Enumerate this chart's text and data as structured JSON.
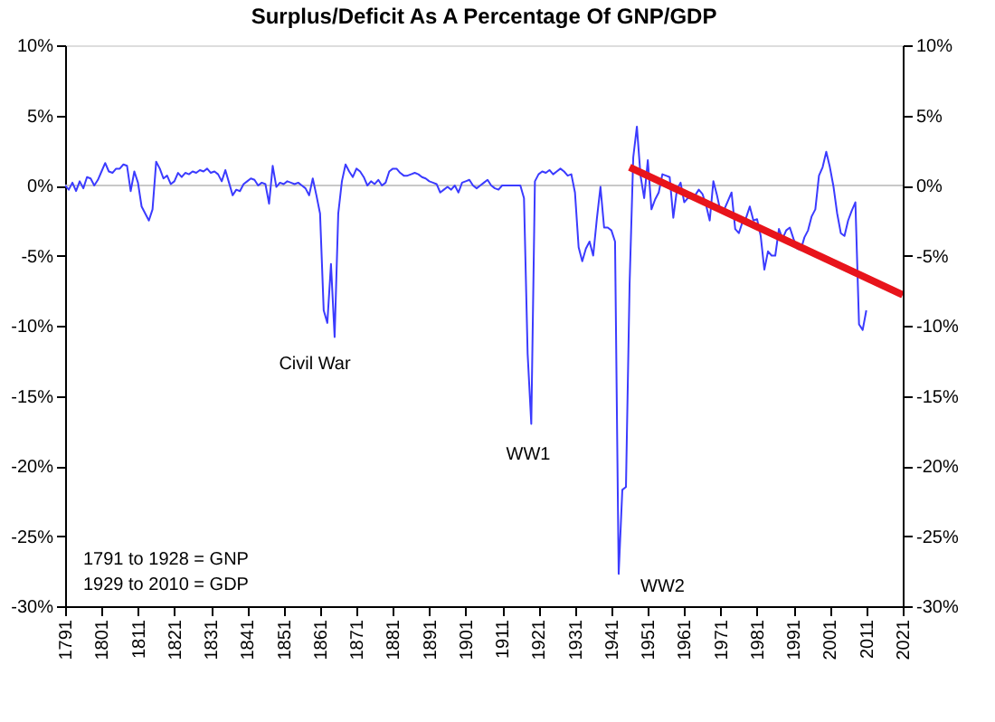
{
  "chart_data": {
    "type": "line",
    "title": "Surplus/Deficit As A Percentage Of GNP/GDP",
    "x": [
      1791,
      1792,
      1793,
      1794,
      1795,
      1796,
      1797,
      1798,
      1799,
      1800,
      1801,
      1802,
      1803,
      1804,
      1805,
      1806,
      1807,
      1808,
      1809,
      1810,
      1811,
      1812,
      1813,
      1814,
      1815,
      1816,
      1817,
      1818,
      1819,
      1820,
      1821,
      1822,
      1823,
      1824,
      1825,
      1826,
      1827,
      1828,
      1829,
      1830,
      1831,
      1832,
      1833,
      1834,
      1835,
      1836,
      1837,
      1838,
      1839,
      1840,
      1841,
      1842,
      1843,
      1844,
      1845,
      1846,
      1847,
      1848,
      1849,
      1850,
      1851,
      1852,
      1853,
      1854,
      1855,
      1856,
      1857,
      1858,
      1859,
      1860,
      1861,
      1862,
      1863,
      1864,
      1865,
      1866,
      1867,
      1868,
      1869,
      1870,
      1871,
      1872,
      1873,
      1874,
      1875,
      1876,
      1877,
      1878,
      1879,
      1880,
      1881,
      1882,
      1883,
      1884,
      1885,
      1886,
      1887,
      1888,
      1889,
      1890,
      1891,
      1892,
      1893,
      1894,
      1895,
      1896,
      1897,
      1898,
      1899,
      1900,
      1901,
      1902,
      1903,
      1904,
      1905,
      1906,
      1907,
      1908,
      1909,
      1910,
      1911,
      1912,
      1913,
      1914,
      1915,
      1916,
      1917,
      1918,
      1919,
      1920,
      1921,
      1922,
      1923,
      1924,
      1925,
      1926,
      1927,
      1928,
      1929,
      1930,
      1931,
      1932,
      1933,
      1934,
      1935,
      1936,
      1937,
      1938,
      1939,
      1940,
      1941,
      1942,
      1943,
      1944,
      1945,
      1946,
      1947,
      1948,
      1949,
      1950,
      1951,
      1952,
      1953,
      1954,
      1955,
      1956,
      1957,
      1958,
      1959,
      1960,
      1961,
      1962,
      1963,
      1964,
      1965,
      1966,
      1967,
      1968,
      1969,
      1970,
      1971,
      1972,
      1973,
      1974,
      1975,
      1976,
      1977,
      1978,
      1979,
      1980,
      1981,
      1982,
      1983,
      1984,
      1985,
      1986,
      1987,
      1988,
      1989,
      1990,
      1991,
      1992,
      1993,
      1994,
      1995,
      1996,
      1997,
      1998,
      1999,
      2000,
      2001,
      2002,
      2003,
      2004,
      2005,
      2006,
      2007,
      2008,
      2009,
      2010,
      2011
    ],
    "series": [
      {
        "color": "#3b3bff",
        "values": [
          0,
          -0.3,
          0.2,
          -0.4,
          0.3,
          -0.2,
          0.6,
          0.5,
          0,
          0.4,
          1.0,
          1.6,
          1.0,
          0.9,
          1.2,
          1.2,
          1.5,
          1.4,
          -0.4,
          1.0,
          0.2,
          -1.5,
          -2.0,
          -2.5,
          -1.7,
          1.7,
          1.2,
          0.5,
          0.7,
          0.1,
          0.3,
          0.9,
          0.6,
          0.9,
          0.8,
          1.0,
          0.9,
          1.1,
          1.0,
          1.2,
          0.9,
          1.0,
          0.8,
          0.3,
          1.1,
          0.2,
          -0.7,
          -0.3,
          -0.4,
          0.1,
          0.3,
          0.5,
          0.4,
          0,
          0.2,
          0.1,
          -1.3,
          1.4,
          -0.1,
          0.2,
          0.1,
          0.3,
          0.2,
          0.1,
          0.2,
          0,
          -0.2,
          -0.7,
          0.5,
          -0.7,
          -2.0,
          -8.9,
          -9.8,
          -5.6,
          -10.8,
          -2.0,
          0.3,
          1.5,
          1.0,
          0.6,
          1.2,
          1.0,
          0.6,
          0,
          0.3,
          0.1,
          0.4,
          0,
          0.2,
          1.0,
          1.2,
          1.2,
          0.9,
          0.7,
          0.7,
          0.8,
          0.9,
          0.8,
          0.6,
          0.5,
          0.3,
          0.2,
          0.1,
          -0.5,
          -0.3,
          -0.1,
          -0.3,
          0,
          -0.5,
          0.2,
          0.3,
          0.4,
          0,
          -0.2,
          0,
          0.2,
          0.4,
          0,
          -0.2,
          -0.3,
          0,
          0,
          0,
          0,
          0,
          0,
          -0.9,
          -12.0,
          -17.0,
          0.3,
          0.8,
          1.0,
          0.9,
          1.1,
          0.8,
          1.0,
          1.2,
          1.0,
          0.7,
          0.8,
          -0.5,
          -4.4,
          -5.4,
          -4.5,
          -4.0,
          -5.0,
          -2.4,
          -0.1,
          -3.0,
          -3.0,
          -3.2,
          -4.0,
          -27.7,
          -21.7,
          -21.5,
          -7.0,
          2.0,
          4.2,
          0.7,
          -0.9,
          1.8,
          -1.7,
          -1.0,
          -0.5,
          0.8,
          0.7,
          0.6,
          -2.3,
          -0.3,
          0.2,
          -1.2,
          -0.9,
          -0.8,
          -0.7,
          -0.3,
          -0.6,
          -1.4,
          -2.5,
          0.3,
          -0.7,
          -1.9,
          -1.7,
          -1.1,
          -0.5,
          -3.1,
          -3.4,
          -2.6,
          -2.3,
          -1.5,
          -2.5,
          -2.4,
          -3.6,
          -6.0,
          -4.7,
          -5.0,
          -5.0,
          -3.1,
          -3.8,
          -3.2,
          -3.0,
          -3.8,
          -4.5,
          -4.6,
          -3.7,
          -3.2,
          -2.2,
          -1.7,
          0.7,
          1.3,
          2.4,
          1.3,
          -0.1,
          -2.0,
          -3.4,
          -3.6,
          -2.5,
          -1.8,
          -1.2,
          -9.9,
          -10.3,
          -8.9
        ]
      },
      {
        "type": "line",
        "color": "#e8141b",
        "x": [
          1946,
          2021
        ],
        "values": [
          1.3,
          -7.8
        ]
      }
    ],
    "xlim": [
      1791,
      2021
    ],
    "xticks": [
      1791,
      1801,
      1811,
      1821,
      1831,
      1841,
      1851,
      1861,
      1871,
      1881,
      1891,
      1901,
      1911,
      1921,
      1931,
      1941,
      1951,
      1961,
      1971,
      1981,
      1991,
      2001,
      2011,
      2021
    ],
    "ylim": [
      -30,
      10
    ],
    "yticks": [
      {
        "value": 10,
        "label": "10%"
      },
      {
        "value": 5,
        "label": "5%"
      },
      {
        "value": 0,
        "label": "0%"
      },
      {
        "value": -5,
        "label": "-5%"
      },
      {
        "value": -10,
        "label": "-10%"
      },
      {
        "value": -15,
        "label": "-15%"
      },
      {
        "value": -20,
        "label": "-20%"
      },
      {
        "value": -25,
        "label": "-25%"
      },
      {
        "value": -30,
        "label": "-30%"
      }
    ],
    "y2lim": [
      -30,
      10
    ],
    "y2ticks": [
      {
        "value": 10,
        "label": "10%"
      },
      {
        "value": 5,
        "label": "5%"
      },
      {
        "value": 0,
        "label": "0%"
      },
      {
        "value": -5,
        "label": "-5%"
      },
      {
        "value": -10,
        "label": "-10%"
      },
      {
        "value": -15,
        "label": "-15%"
      },
      {
        "value": -20,
        "label": "-20%"
      },
      {
        "value": -25,
        "label": "-25%"
      },
      {
        "value": -30,
        "label": "-30%"
      }
    ],
    "ref_lines": [
      {
        "axis": "y",
        "value": 0,
        "color": "#c8c8c8"
      }
    ],
    "annotations": [
      "Civil War",
      "WW1",
      "WW2",
      "1791 to 1928 = GNP",
      "1929 to 2010 = GDP"
    ],
    "grid": false,
    "marker": "none",
    "line_style": "solid"
  }
}
